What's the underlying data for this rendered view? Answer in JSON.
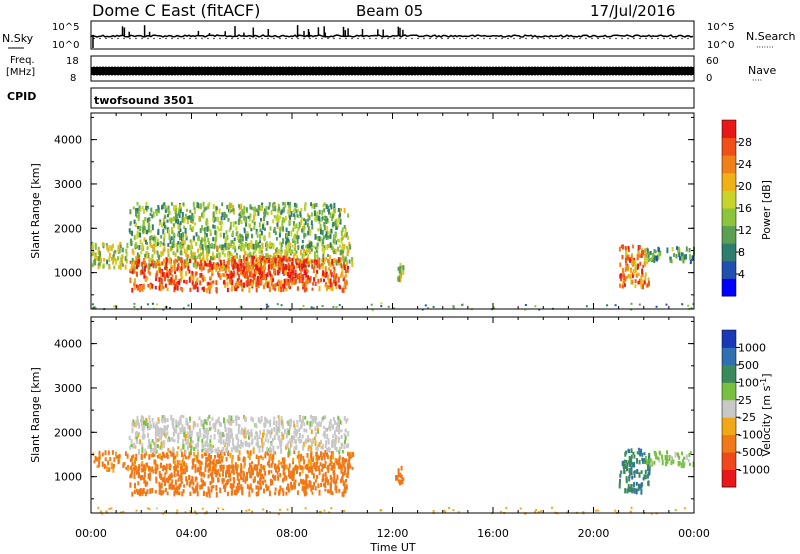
{
  "header": {
    "title": "Dome C East (fitACF)",
    "beam": "Beam 05",
    "date": "17/Jul/2016"
  },
  "strips": {
    "nsky_label": "N.Sky",
    "nsearch_label": "N.Search",
    "nsearch_dots": "·······",
    "count_top_left": "10^5",
    "count_bottom_left": "10^0",
    "count_top_right": "10^5",
    "count_bottom_right": "10^0",
    "freq_label": "Freq.",
    "freq_unit": "[MHz]",
    "freq_top": "18",
    "freq_bottom": "8",
    "nave_label": "Nave",
    "nave_dots": "····",
    "nave_top": "60",
    "nave_bottom": "0",
    "cpid_label": "CPID",
    "cpid_value": "twofsound 3501"
  },
  "chart_data": [
    {
      "type": "heatmap",
      "name": "power",
      "ylabel": "Slant Range [km]",
      "yticks": [
        "1000",
        "2000",
        "3000",
        "4000"
      ],
      "ylim": [
        180,
        4600
      ],
      "xlim_hours": [
        0,
        24
      ],
      "colorbar": {
        "label": "Power [dB]",
        "ticks": [
          "4",
          "8",
          "12",
          "16",
          "20",
          "24",
          "28"
        ],
        "colors": [
          "#0000ff",
          "#2050b0",
          "#2e7d6e",
          "#5aa050",
          "#8cc43a",
          "#c8d42a",
          "#f0b018",
          "#f08018",
          "#f05018",
          "#e81818"
        ]
      },
      "regions": [
        {
          "t": [
            0.0,
            10.4
          ],
          "r": [
            1150,
            1700
          ],
          "level": 0.5
        },
        {
          "t": [
            1.5,
            10.2
          ],
          "r": [
            1600,
            2600
          ],
          "level": 0.4
        },
        {
          "t": [
            1.5,
            10.2
          ],
          "r": [
            650,
            1350
          ],
          "level": 0.85
        },
        {
          "t": [
            5.5,
            8.5
          ],
          "r": [
            750,
            1400
          ],
          "level": 0.9
        },
        {
          "t": [
            12.1,
            12.4
          ],
          "r": [
            900,
            1250
          ],
          "level": 0.5
        },
        {
          "t": [
            21.0,
            22.2
          ],
          "r": [
            700,
            1650
          ],
          "level": 0.8
        },
        {
          "t": [
            22.0,
            24.0
          ],
          "r": [
            1300,
            1600
          ],
          "level": 0.35
        },
        {
          "t": [
            0.0,
            24.0
          ],
          "r": [
            180,
            330
          ],
          "level": 0.3
        }
      ]
    },
    {
      "type": "heatmap",
      "name": "velocity",
      "ylabel": "Slant Range [km]",
      "yticks": [
        "1000",
        "2000",
        "3000",
        "4000"
      ],
      "ylim": [
        180,
        4600
      ],
      "xlim_hours": [
        0,
        24
      ],
      "xlabel": "Time UT",
      "xticks": [
        "00:00",
        "04:00",
        "08:00",
        "12:00",
        "16:00",
        "20:00",
        "00:00"
      ],
      "colorbar": {
        "label": "Velocity [m s^-1]",
        "ticks": [
          "-1000",
          "-500",
          "-100",
          "-25",
          "25",
          "100",
          "500",
          "1000"
        ],
        "colors": [
          "#e81818",
          "#f04818",
          "#f07818",
          "#f0a818",
          "#c8c8c8",
          "#78c040",
          "#3a8a5a",
          "#2f70b0",
          "#1838b8"
        ]
      },
      "regions": [
        {
          "t": [
            0.0,
            10.4
          ],
          "r": [
            1200,
            1600
          ],
          "velocity": -150
        },
        {
          "t": [
            1.5,
            10.2
          ],
          "r": [
            1600,
            2400
          ],
          "velocity": 0
        },
        {
          "t": [
            1.5,
            10.2
          ],
          "r": [
            650,
            1300
          ],
          "velocity": -250
        },
        {
          "t": [
            12.1,
            12.4
          ],
          "r": [
            900,
            1250
          ],
          "velocity": -200
        },
        {
          "t": [
            21.0,
            22.2
          ],
          "r": [
            700,
            1650
          ],
          "velocity": 400
        },
        {
          "t": [
            22.0,
            24.0
          ],
          "r": [
            1300,
            1600
          ],
          "velocity": 50
        },
        {
          "t": [
            0.0,
            24.0
          ],
          "r": [
            180,
            330
          ],
          "velocity": -60
        }
      ]
    }
  ]
}
